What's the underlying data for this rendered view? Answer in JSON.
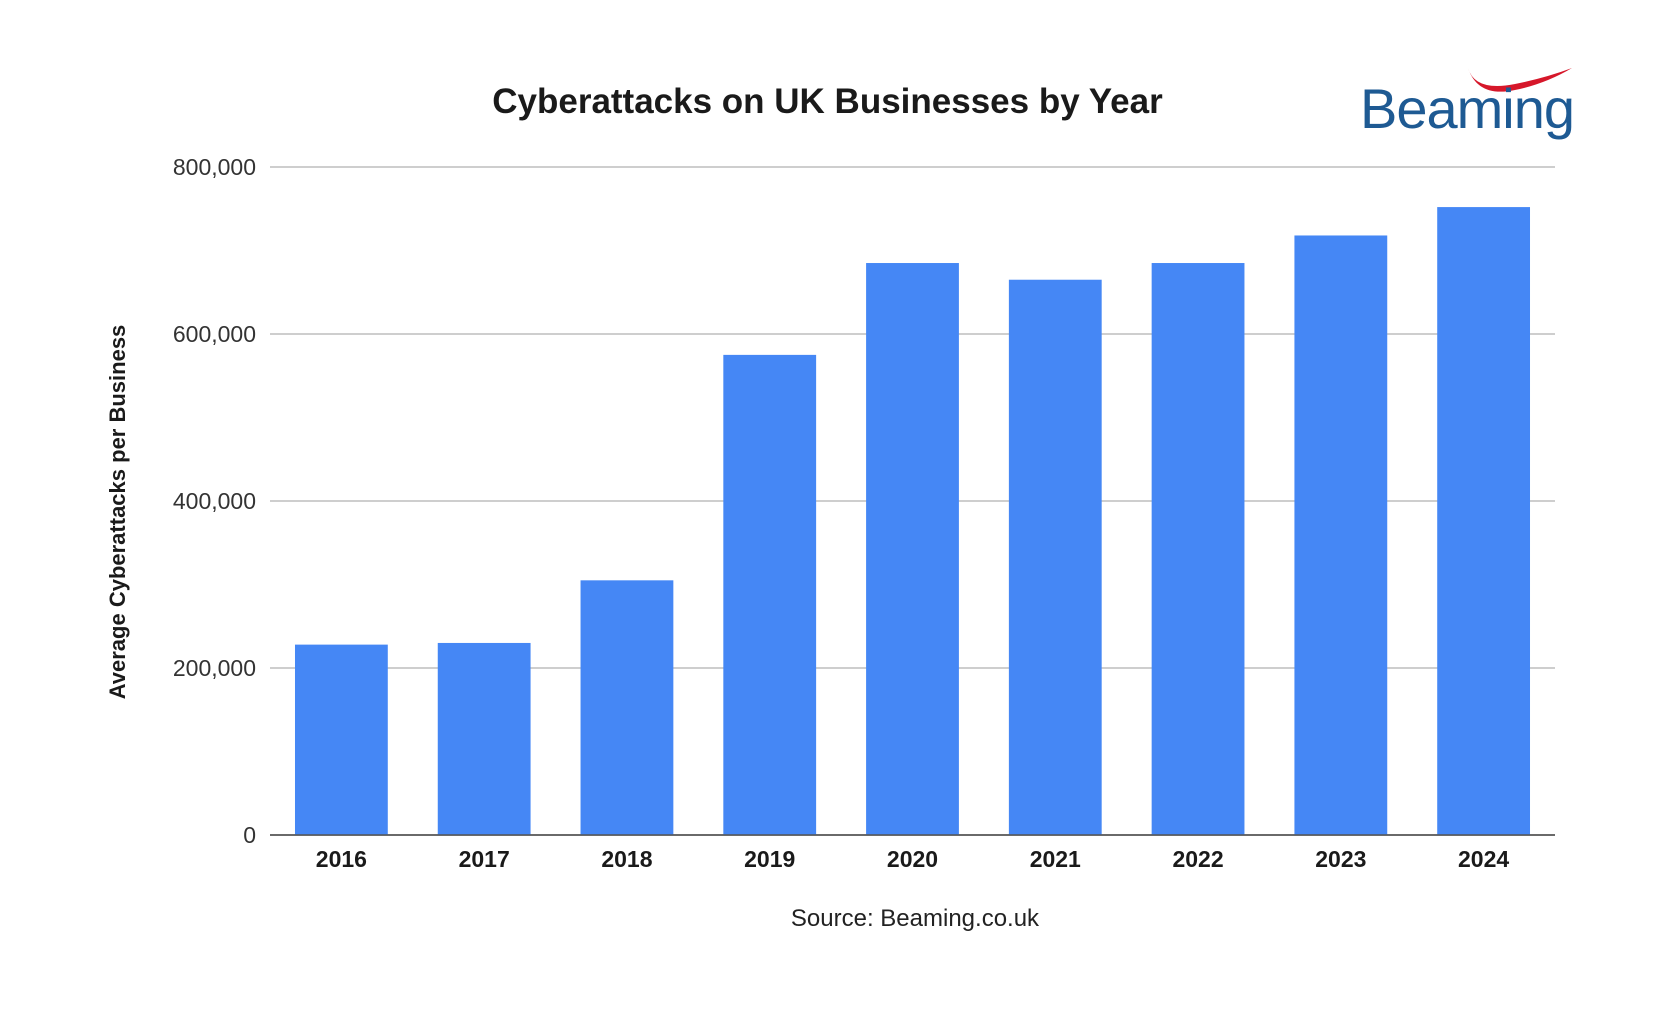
{
  "logo": {
    "text": "Beaming",
    "text_color": "#1e5a93",
    "swoosh_color": "#d6172a"
  },
  "chart_data": {
    "type": "bar",
    "title": "Cyberattacks on UK Businesses by Year",
    "xlabel": "",
    "ylabel": "Average Cyberattacks per Business",
    "source": "Source: Beaming.co.uk",
    "categories": [
      "2016",
      "2017",
      "2018",
      "2019",
      "2020",
      "2021",
      "2022",
      "2023",
      "2024"
    ],
    "values": [
      228000,
      230000,
      305000,
      575000,
      685000,
      665000,
      685000,
      718000,
      752000
    ],
    "ylim": [
      0,
      800000
    ],
    "yticks": [
      0,
      200000,
      400000,
      600000,
      800000
    ],
    "ytick_labels": [
      "0",
      "200,000",
      "400,000",
      "600,000",
      "800,000"
    ],
    "grid": true,
    "bar_color": "#4587f5",
    "grid_color": "#9e9e9e"
  }
}
